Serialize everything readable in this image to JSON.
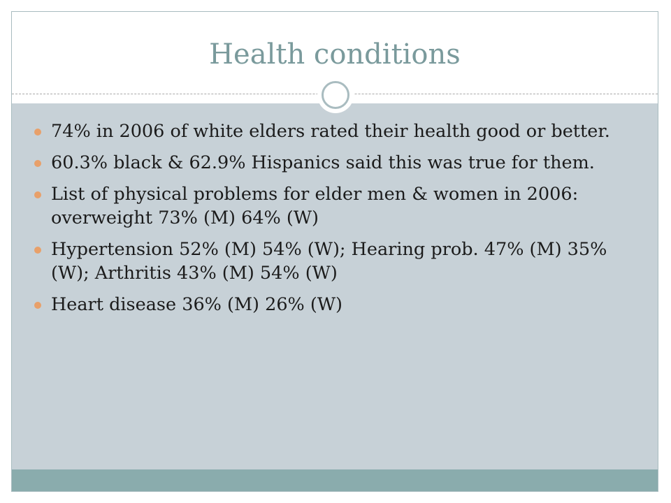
{
  "slide": {
    "title": "Health conditions",
    "bullets": [
      {
        "text": "74% in 2006 of white elders rated their health good or better."
      },
      {
        "text": "60.3% black & 62.9% Hispanics said this was true for them."
      },
      {
        "text": "List of physical problems for elder men & women in 2006: overweight 73% (M) 64% (W)"
      },
      {
        "text": "Hypertension 52% (M) 54% (W); Hearing prob.  47% (M) 35% (W); Arthritis 43% (M) 54% (W)"
      },
      {
        "text": "Heart disease 36% (M) 26% (W)"
      }
    ]
  },
  "colors": {
    "title": "#7a9a9c",
    "content_background": "#c7d1d7",
    "bottom_band": "#8aacad",
    "bullet_marker": "#e8a06a",
    "ring": "#a9bcc0"
  }
}
